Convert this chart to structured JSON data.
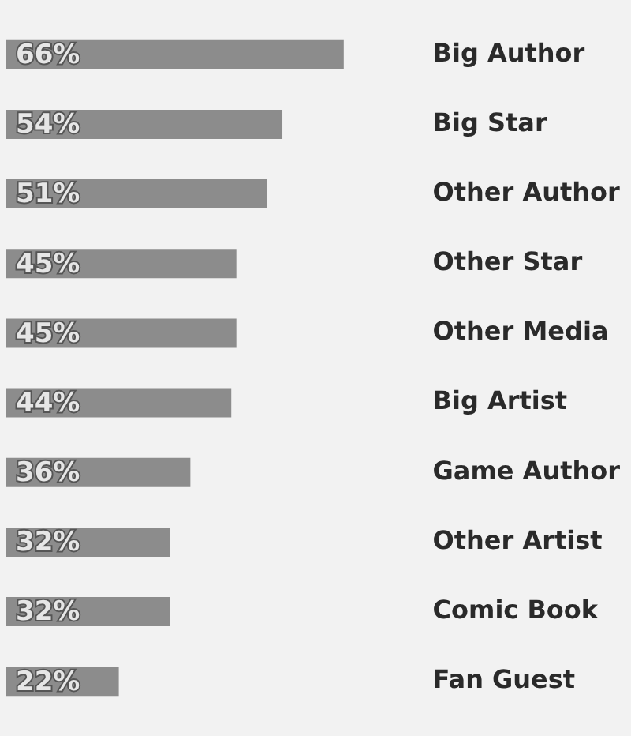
{
  "chart_data": {
    "type": "bar",
    "orientation": "horizontal",
    "categories": [
      "Big Author",
      "Big Star",
      "Other Author",
      "Other Star",
      "Other Media",
      "Big Artist",
      "Game Author",
      "Other Artist",
      "Comic Book",
      "Fan Guest"
    ],
    "values": [
      66,
      54,
      51,
      45,
      45,
      44,
      36,
      32,
      32,
      22
    ],
    "value_labels": [
      "66%",
      "54%",
      "51%",
      "45%",
      "45%",
      "44%",
      "36%",
      "32%",
      "32%",
      "22%"
    ],
    "color": "#8c8c8c",
    "legend": false,
    "tick_labels": "y"
  }
}
